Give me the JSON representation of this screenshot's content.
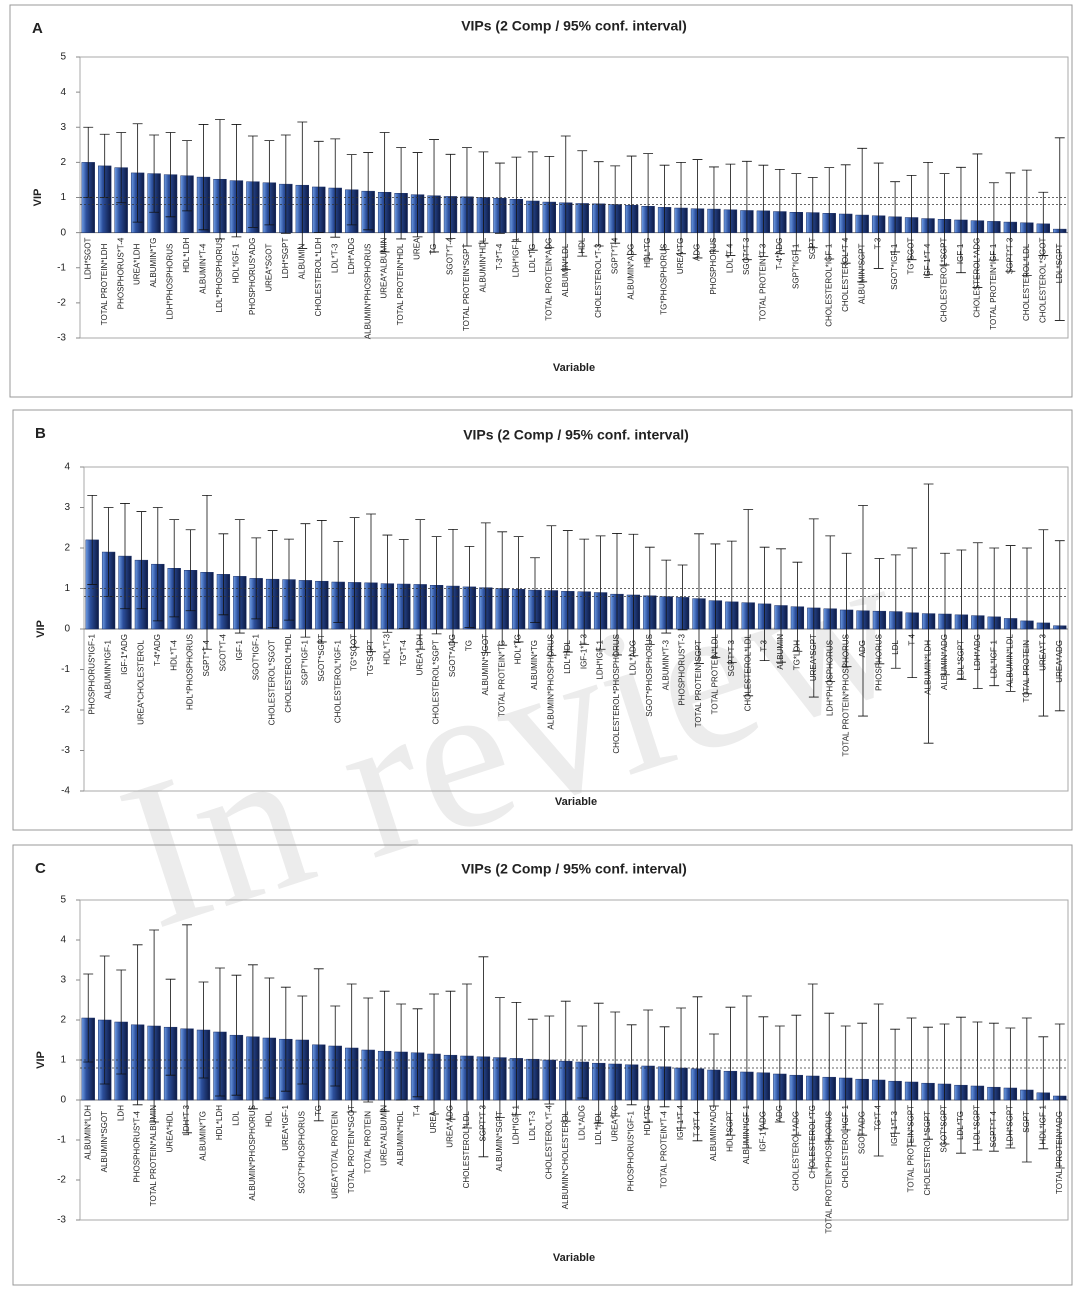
{
  "watermark": "In review",
  "chart_data": [
    {
      "type": "bar",
      "label": "A",
      "title": "VIPs (2 Comp / 95% conf. interval)",
      "xlabel": "Variable",
      "ylabel": "VIP",
      "categories": [
        "LDH*SGOT",
        "TOTAL PROTEIN*LDH",
        "PHOSPHORUS*T-4",
        "UREA*LDH",
        "ALBUMIN*TG",
        "LDH*PHOSPHORUS",
        "HDL*LDH",
        "ALBUMIN*T-4",
        "LDL*PHOSPHORUS",
        "HDL*IGF-1",
        "PHOSPHORUS*ADG",
        "UREA*SGOT",
        "LDH*SGPT",
        "ALBUMIN",
        "CHOLESTEROL*LDH",
        "LDL*T-3",
        "LDH*ADG",
        "ALBUMIN*PHOSPHORUS",
        "UREA*ALBUMIN",
        "TOTAL PROTEIN*HDL",
        "UREA",
        "TG",
        "SGOT*T-4",
        "TOTAL PROTEIN*SGPT",
        "ALBUMIN*HDL",
        "T-3*T-4",
        "LDH*IGF-1",
        "LDL*TG",
        "TOTAL PROTEIN*ADG",
        "ALBUMIN*LDL",
        "HDL",
        "CHOLESTEROL*T-3",
        "SGPT*T-4",
        "ALBUMIN*ADG",
        "HDL*TG",
        "TG*PHOSPHORUS",
        "UREA*TG",
        "ADG",
        "PHOSPHORUS",
        "LDL*T-4",
        "SGOT*T-3",
        "TOTAL PROTEIN*T-3",
        "T-4*ADG",
        "SGPT*IGF-1",
        "SGPT",
        "CHOLESTEROL*IGF-1",
        "CHOLESTEROL*T-4",
        "ALBUMIN*SGPT",
        "T-3",
        "SGOT*IGF-1",
        "TG*SGOT",
        "IGF-1*T-4",
        "CHOLESTEROL*SGPT",
        "IGF-1",
        "CHOLESTEROL*ADG",
        "TOTAL PROTEIN*IGF-1",
        "SGPT*T-3",
        "CHOLESTEROL*LDL",
        "CHOLESTEROL*SGOT",
        "LDL*SGPT"
      ],
      "values": [
        2.0,
        1.9,
        1.85,
        1.7,
        1.68,
        1.65,
        1.62,
        1.58,
        1.52,
        1.48,
        1.45,
        1.42,
        1.38,
        1.35,
        1.3,
        1.27,
        1.22,
        1.18,
        1.15,
        1.12,
        1.08,
        1.05,
        1.03,
        1.02,
        1.0,
        0.98,
        0.95,
        0.9,
        0.87,
        0.85,
        0.83,
        0.82,
        0.8,
        0.78,
        0.75,
        0.72,
        0.7,
        0.68,
        0.67,
        0.65,
        0.63,
        0.62,
        0.6,
        0.58,
        0.57,
        0.55,
        0.53,
        0.5,
        0.48,
        0.45,
        0.43,
        0.4,
        0.38,
        0.36,
        0.34,
        0.32,
        0.3,
        0.28,
        0.25,
        0.1
      ],
      "errors": [
        1.0,
        0.9,
        1.0,
        1.4,
        1.1,
        1.2,
        1.0,
        1.5,
        1.7,
        1.6,
        1.3,
        1.2,
        1.4,
        1.8,
        1.3,
        1.4,
        1.0,
        1.1,
        1.7,
        1.3,
        1.2,
        1.6,
        1.2,
        1.4,
        1.3,
        1.0,
        1.2,
        1.4,
        1.3,
        1.9,
        1.5,
        1.2,
        1.1,
        1.4,
        1.5,
        1.2,
        1.3,
        1.4,
        1.2,
        1.3,
        1.4,
        1.3,
        1.2,
        1.1,
        1.0,
        1.3,
        1.4,
        1.9,
        1.5,
        1.0,
        1.2,
        1.6,
        1.3,
        1.5,
        1.9,
        1.1,
        1.4,
        1.5,
        0.9,
        2.6
      ],
      "color": "#1b2f66",
      "ylim": [
        -3,
        5
      ],
      "yticks": [
        -3,
        -2,
        -1,
        0,
        1,
        2,
        3,
        4,
        5
      ],
      "ref_lines": [
        0.8,
        1
      ]
    },
    {
      "type": "bar",
      "label": "B",
      "title": "VIPs (2 Comp / 95% conf. interval)",
      "xlabel": "Variable",
      "ylabel": "VIP",
      "categories": [
        "PHOSPHORUS*IGF-1",
        "ALBUMIN*IGF-1",
        "IGF-1*ADG",
        "UREA*CHOLESTEROL",
        "T-4*ADG",
        "HDL*T-4",
        "HDL*PHOSPHORUS",
        "SGPT*T-4",
        "SGOT*T-4",
        "IGF-1",
        "SGOT*IGF-1",
        "CHOLESTEROL*SGOT",
        "CHOLESTEROL*HDL",
        "SGPT*IGF-1",
        "SGOT*SGPT",
        "CHOLESTEROL*IGF-1",
        "TG*SGOT",
        "TG*SGPT",
        "HDL*T-3",
        "TG*T-4",
        "UREA*LDH",
        "CHOLESTEROL*SGPT",
        "SGOT*ADG",
        "TG",
        "ALBUMIN*SGOT",
        "TOTAL PROTEIN*TG",
        "HDL*TG",
        "ALBUMIN*TG",
        "ALBUMIN*PHOSPHORUS",
        "LDL*HDL",
        "IGF-1*T-3",
        "LDH*IGF-1",
        "CHOLESTEROL*PHOSPHORUS",
        "LDL*ADG",
        "SGOT*PHOSPHORUS",
        "ALBUMIN*T-3",
        "PHOSPHORUS*T-3",
        "TOTAL PROTEIN*SGPT",
        "TOTAL PROTEIN*LDL",
        "SGPT*T-3",
        "CHOLESTEROL*LDL",
        "T-3",
        "ALBUMIN",
        "TG*LDH",
        "UREA*SGPT",
        "LDH*PHOSPHORUS",
        "TOTAL PROTEIN*PHOSPHORUS",
        "ADG",
        "PHOSPHORUS",
        "LDL",
        "T-4",
        "ALBUMIN*LDH",
        "ALBUMIN*ADG",
        "LDL*SGPT",
        "LDH*ADG",
        "LDL*IGF-1",
        "ALBUMIN*LDL",
        "TOTAL PROTEIN",
        "UREA*T-3",
        "UREA*ADG"
      ],
      "values": [
        2.2,
        1.9,
        1.8,
        1.7,
        1.6,
        1.5,
        1.45,
        1.4,
        1.35,
        1.3,
        1.25,
        1.23,
        1.22,
        1.2,
        1.18,
        1.16,
        1.15,
        1.14,
        1.12,
        1.11,
        1.1,
        1.08,
        1.06,
        1.04,
        1.02,
        1.0,
        0.98,
        0.96,
        0.95,
        0.93,
        0.92,
        0.9,
        0.86,
        0.84,
        0.82,
        0.8,
        0.78,
        0.75,
        0.7,
        0.67,
        0.65,
        0.62,
        0.58,
        0.55,
        0.52,
        0.5,
        0.47,
        0.45,
        0.44,
        0.43,
        0.4,
        0.38,
        0.37,
        0.35,
        0.33,
        0.3,
        0.26,
        0.2,
        0.15,
        0.08
      ],
      "errors": [
        1.1,
        1.1,
        1.3,
        1.2,
        1.4,
        1.2,
        1.0,
        1.9,
        1.0,
        1.4,
        1.0,
        1.2,
        1.0,
        1.4,
        1.5,
        1.0,
        1.6,
        1.7,
        1.2,
        1.1,
        1.6,
        1.2,
        1.4,
        1.0,
        1.6,
        1.4,
        1.3,
        0.8,
        1.6,
        1.5,
        1.3,
        1.4,
        1.5,
        1.5,
        1.2,
        0.9,
        0.8,
        1.6,
        1.4,
        1.5,
        2.3,
        1.4,
        1.4,
        1.1,
        2.2,
        1.8,
        1.4,
        2.6,
        1.3,
        1.4,
        1.6,
        3.2,
        1.5,
        1.6,
        1.8,
        1.7,
        1.8,
        1.8,
        2.3,
        2.1
      ],
      "color": "#1b2f66",
      "ylim": [
        -4,
        4
      ],
      "yticks": [
        -4,
        -3,
        -2,
        -1,
        0,
        1,
        2,
        3,
        4
      ],
      "ref_lines": [
        0.8,
        1
      ]
    },
    {
      "type": "bar",
      "label": "C",
      "title": "VIPs (2 Comp / 95% conf. interval)",
      "xlabel": "Variable",
      "ylabel": "VIP",
      "categories": [
        "ALBUMIN*LDH",
        "ALBUMIN*SGOT",
        "LDH",
        "PHOSPHORUS*T-4",
        "TOTAL PROTEIN*ALBUMIN",
        "UREA*HDL",
        "LDH*T-3",
        "ALBUMIN*TG",
        "HDL*LDH",
        "LDL",
        "ALBUMIN*PHOSPHORUS",
        "HDL",
        "UREA*IGF-1",
        "SGOT*PHOSPHORUS",
        "TG",
        "UREA*TOTAL PROTEIN",
        "TOTAL PROTEIN*SGOT",
        "TOTAL PROTEIN",
        "UREA*ALBUMIN",
        "ALBUMIN*HDL",
        "T-4",
        "UREA",
        "UREA*ADG",
        "CHOLESTEROL*LDL",
        "SGPT*T-3",
        "ALBUMIN*SGPT",
        "LDH*IGF-1",
        "LDL*T-3",
        "CHOLESTEROL*T-4",
        "ALBUMIN*CHOLESTEROL",
        "LDL*ADG",
        "LDL*HDL",
        "UREA*TG",
        "PHOSPHORUS*IGF-1",
        "HDL*TG",
        "TOTAL PROTEIN*T-4",
        "IGF-1*T-4",
        "T-3*T-4",
        "ALBUMIN*ADG",
        "HDL*SGPT",
        "ALBUMIN*IGF-1",
        "IGF-1*ADG",
        "ADG",
        "CHOLESTEROL*ADG",
        "CHOLESTEROL*TG",
        "TOTAL PROTEIN*PHOSPHORUS",
        "CHOLESTEROL*IGF-1",
        "SGOT*ADG",
        "TG*T-4",
        "IGF-1*T-3",
        "TOTAL PROTEIN*SGPT",
        "CHOLESTEROL*SGPT",
        "SGOT*SGPT",
        "LDL*TG",
        "LDL*SGPT",
        "SGPT*T-4",
        "LDH*SGPT",
        "SGPT",
        "HDL*IGF-1",
        "TOTAL PROTEIN*ADG"
      ],
      "values": [
        2.05,
        2.0,
        1.95,
        1.88,
        1.85,
        1.82,
        1.78,
        1.75,
        1.7,
        1.62,
        1.58,
        1.55,
        1.52,
        1.5,
        1.38,
        1.35,
        1.3,
        1.25,
        1.22,
        1.2,
        1.18,
        1.15,
        1.12,
        1.1,
        1.08,
        1.06,
        1.04,
        1.02,
        1.0,
        0.97,
        0.95,
        0.92,
        0.9,
        0.88,
        0.85,
        0.83,
        0.8,
        0.78,
        0.75,
        0.72,
        0.7,
        0.68,
        0.65,
        0.62,
        0.6,
        0.57,
        0.55,
        0.52,
        0.5,
        0.47,
        0.45,
        0.42,
        0.4,
        0.37,
        0.35,
        0.32,
        0.3,
        0.25,
        0.18,
        0.1
      ],
      "errors": [
        1.1,
        1.6,
        1.3,
        2.0,
        2.4,
        1.2,
        2.6,
        1.2,
        1.6,
        1.5,
        1.8,
        1.5,
        1.3,
        1.1,
        1.9,
        1.0,
        1.6,
        1.3,
        1.5,
        1.2,
        1.1,
        1.5,
        1.6,
        1.8,
        2.5,
        1.5,
        1.4,
        1.0,
        1.1,
        1.5,
        0.9,
        1.5,
        1.3,
        1.0,
        1.4,
        1.0,
        1.5,
        1.8,
        0.9,
        1.6,
        1.9,
        1.4,
        1.2,
        1.5,
        2.3,
        1.6,
        1.3,
        1.4,
        1.9,
        1.3,
        1.6,
        1.4,
        1.5,
        1.7,
        1.6,
        1.6,
        1.5,
        1.8,
        1.4,
        1.8
      ],
      "color": "#1b2f66",
      "ylim": [
        -3,
        5
      ],
      "yticks": [
        -3,
        -2,
        -1,
        0,
        1,
        2,
        3,
        4,
        5
      ],
      "ref_lines": [
        0.8,
        1
      ]
    }
  ]
}
